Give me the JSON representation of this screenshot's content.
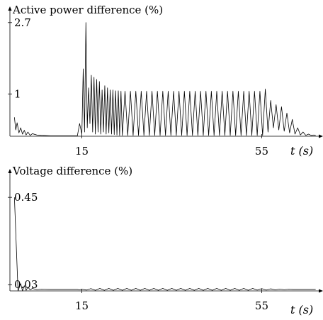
{
  "chart_data": [
    {
      "type": "line",
      "ylabel": "Active power difference (%)",
      "xlabel": "t (s)",
      "xlim": [
        -1,
        68
      ],
      "ylim": [
        0,
        3.0
      ],
      "x_ticks": [
        15,
        55
      ],
      "y_ticks": [
        1,
        2.7
      ],
      "series": [
        {
          "x": [
            0,
            0.3,
            0.6,
            1.0,
            1.4,
            1.8,
            2.2,
            2.6,
            3.0,
            3.5,
            4.0,
            5.0,
            6.0,
            8.0,
            10.0,
            12.0,
            14.0,
            14.5,
            15.0,
            15.3,
            15.6,
            15.9,
            16.2,
            16.5,
            16.8,
            17.1,
            17.4,
            17.7,
            18.0,
            18.3,
            18.6,
            18.9,
            19.2,
            19.5,
            19.8,
            20.1,
            20.4,
            20.7,
            21.0,
            21.3,
            21.6,
            21.9,
            22.2,
            22.5,
            22.8,
            23.1,
            23.4,
            23.7,
            24.0,
            24.6,
            25.2,
            25.8,
            26.4,
            27.0,
            27.6,
            28.2,
            28.8,
            29.4,
            30.0,
            30.6,
            31.2,
            31.8,
            32.4,
            33.0,
            33.6,
            34.2,
            34.8,
            35.4,
            36.0,
            36.6,
            37.2,
            37.8,
            38.4,
            39.0,
            39.6,
            40.2,
            40.8,
            41.4,
            42.0,
            42.6,
            43.2,
            43.8,
            44.4,
            45.0,
            45.6,
            46.2,
            46.8,
            47.4,
            48.0,
            48.6,
            49.2,
            49.8,
            50.4,
            51.0,
            51.6,
            52.2,
            52.8,
            53.4,
            54.0,
            54.6,
            55.2,
            55.8,
            56.4,
            57.0,
            57.6,
            58.2,
            58.8,
            59.4,
            60.0,
            60.6,
            61.2,
            61.8,
            62.4,
            63.0,
            63.6,
            64.2,
            64.8,
            65.4,
            66.0,
            66.6,
            67.0
          ],
          "y": [
            0.45,
            0.15,
            0.32,
            0.08,
            0.2,
            0.05,
            0.14,
            0.03,
            0.1,
            0.02,
            0.06,
            0.03,
            0.02,
            0.01,
            0.01,
            0.01,
            0.01,
            0.3,
            0.05,
            1.6,
            0.1,
            2.7,
            0.2,
            1.15,
            0.3,
            1.45,
            0.1,
            1.4,
            0.05,
            1.35,
            0.1,
            1.3,
            0.05,
            1.1,
            0.1,
            1.2,
            0.05,
            1.15,
            0.08,
            1.1,
            0.05,
            1.1,
            0.04,
            1.08,
            0.03,
            1.08,
            0.02,
            1.07,
            0.02,
            1.07,
            0.02,
            1.07,
            0.02,
            1.07,
            0.02,
            1.07,
            0.02,
            1.07,
            0.02,
            1.07,
            0.02,
            1.07,
            0.02,
            1.07,
            0.02,
            1.07,
            0.02,
            1.07,
            0.02,
            1.07,
            0.02,
            1.07,
            0.02,
            1.07,
            0.02,
            1.07,
            0.02,
            1.07,
            0.02,
            1.07,
            0.02,
            1.07,
            0.02,
            1.07,
            0.02,
            1.07,
            0.02,
            1.07,
            0.02,
            1.07,
            0.02,
            1.07,
            0.02,
            1.07,
            0.02,
            1.07,
            0.02,
            1.07,
            0.02,
            1.07,
            0.02,
            1.12,
            0.1,
            0.85,
            0.2,
            0.75,
            0.15,
            0.7,
            0.12,
            0.55,
            0.08,
            0.4,
            0.05,
            0.2,
            0.03,
            0.1,
            0.02,
            0.05,
            0.02,
            0.03,
            0.02
          ]
        }
      ]
    },
    {
      "type": "line",
      "ylabel": "Voltage difference (%)",
      "xlabel": "t (s)",
      "xlim": [
        -1,
        68
      ],
      "ylim": [
        0,
        0.57
      ],
      "x_ticks": [
        15,
        55
      ],
      "y_ticks": [
        0.03,
        0.45
      ],
      "series": [
        {
          "x": [
            0,
            0.8,
            1.4,
            1.8,
            2.2,
            2.6,
            3.0,
            3.5,
            4.0,
            5.0,
            6.0,
            8.0,
            10.0,
            12.0,
            14.0,
            14.5,
            15.0,
            16.0,
            17.0,
            18.0,
            19.0,
            20.0,
            21.0,
            22.0,
            23.0,
            24.0,
            25.0,
            26.0,
            27.0,
            28.0,
            29.0,
            30.0,
            31.0,
            32.0,
            33.0,
            34.0,
            35.0,
            36.0,
            37.0,
            38.0,
            39.0,
            40.0,
            41.0,
            42.0,
            43.0,
            44.0,
            45.0,
            46.0,
            47.0,
            48.0,
            49.0,
            50.0,
            51.0,
            52.0,
            53.0,
            54.0,
            55.0,
            56.0,
            57.0,
            58.0,
            59.0,
            60.0,
            61.0,
            62.0,
            63.0,
            64.0,
            65.0,
            66.0,
            67.0
          ],
          "y": [
            0.45,
            0.0,
            0.035,
            0.0,
            0.025,
            0.003,
            0.018,
            0.005,
            0.012,
            0.006,
            0.008,
            0.007,
            0.007,
            0.007,
            0.007,
            0.005,
            0.008,
            0.004,
            0.011,
            0.003,
            0.012,
            0.003,
            0.012,
            0.003,
            0.012,
            0.003,
            0.012,
            0.003,
            0.012,
            0.003,
            0.012,
            0.003,
            0.012,
            0.003,
            0.012,
            0.003,
            0.012,
            0.003,
            0.012,
            0.003,
            0.012,
            0.003,
            0.012,
            0.003,
            0.012,
            0.003,
            0.012,
            0.003,
            0.012,
            0.003,
            0.012,
            0.003,
            0.012,
            0.003,
            0.012,
            0.004,
            0.011,
            0.004,
            0.01,
            0.005,
            0.009,
            0.006,
            0.008,
            0.007,
            0.007,
            0.007,
            0.007,
            0.007,
            0.007
          ]
        }
      ]
    }
  ]
}
